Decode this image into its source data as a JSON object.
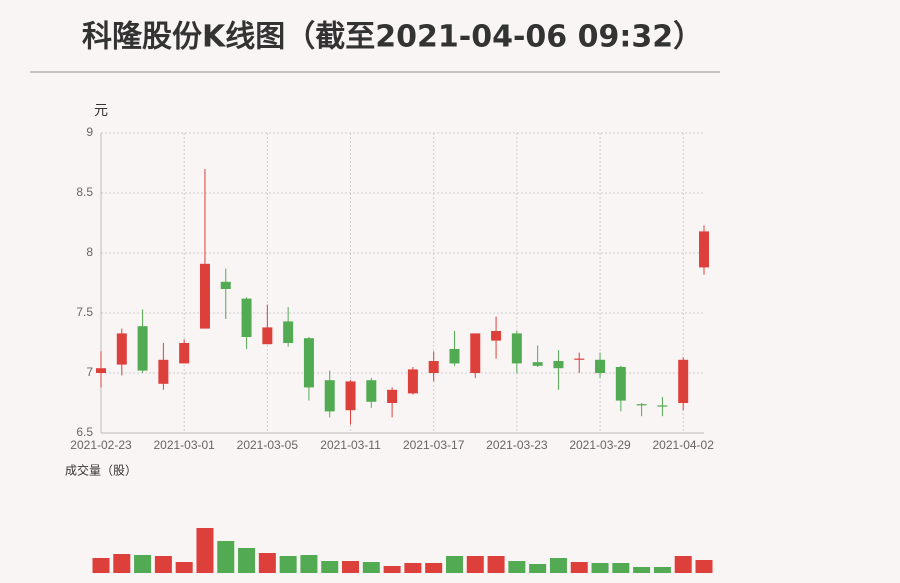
{
  "chart_data": {
    "type": "candlestick",
    "title": "科隆股份K线图（截至2021-04-06 09:32）",
    "y_label": "元",
    "volume_label": "成交量（股）",
    "up_color": "#dd3f3a",
    "down_color": "#52aa52",
    "categories": [
      "2021-02-23",
      null,
      null,
      null,
      "2021-03-01",
      null,
      null,
      null,
      "2021-03-05",
      null,
      null,
      null,
      "2021-03-11",
      null,
      null,
      null,
      "2021-03-17",
      null,
      null,
      null,
      "2021-03-23",
      null,
      null,
      null,
      "2021-03-29",
      null,
      null,
      null,
      "2021-04-02",
      null
    ],
    "open": [
      7.0,
      7.07,
      7.39,
      6.91,
      7.08,
      7.37,
      7.76,
      7.62,
      7.24,
      7.43,
      7.29,
      6.94,
      6.69,
      6.94,
      6.75,
      6.83,
      7.0,
      7.2,
      7.0,
      7.27,
      7.33,
      7.09,
      7.1,
      7.11,
      7.11,
      7.05,
      6.74,
      6.73,
      6.75,
      7.88
    ],
    "high": [
      7.18,
      7.37,
      7.53,
      7.25,
      7.28,
      8.7,
      7.87,
      7.63,
      7.57,
      7.55,
      7.3,
      7.02,
      6.94,
      6.96,
      6.88,
      7.05,
      7.18,
      7.35,
      7.33,
      7.47,
      7.35,
      7.23,
      7.19,
      7.17,
      7.17,
      7.06,
      6.75,
      6.8,
      7.13,
      8.23
    ],
    "low": [
      6.88,
      6.98,
      7.0,
      6.86,
      7.08,
      7.37,
      7.45,
      7.2,
      7.24,
      7.22,
      6.77,
      6.63,
      6.57,
      6.71,
      6.63,
      6.82,
      6.93,
      7.06,
      6.96,
      7.12,
      7.0,
      7.05,
      6.86,
      7.0,
      6.96,
      6.68,
      6.64,
      6.64,
      6.69,
      7.82
    ],
    "close": [
      7.04,
      7.33,
      7.02,
      7.11,
      7.25,
      7.91,
      7.7,
      7.3,
      7.38,
      7.25,
      6.88,
      6.68,
      6.93,
      6.76,
      6.86,
      7.03,
      7.1,
      7.08,
      7.33,
      7.35,
      7.08,
      7.06,
      7.04,
      7.12,
      7.0,
      6.77,
      6.73,
      6.72,
      7.11,
      8.18
    ],
    "ylim": [
      6.5,
      9
    ],
    "yticks": [
      6.5,
      7,
      7.5,
      8,
      8.5,
      9
    ],
    "volume": [
      15,
      19,
      18,
      17,
      11,
      45,
      32,
      25,
      20,
      17,
      18,
      12,
      12,
      11,
      7,
      10,
      10,
      17,
      17,
      17,
      12,
      9,
      15,
      11,
      10,
      10,
      6,
      6,
      17,
      13
    ]
  }
}
